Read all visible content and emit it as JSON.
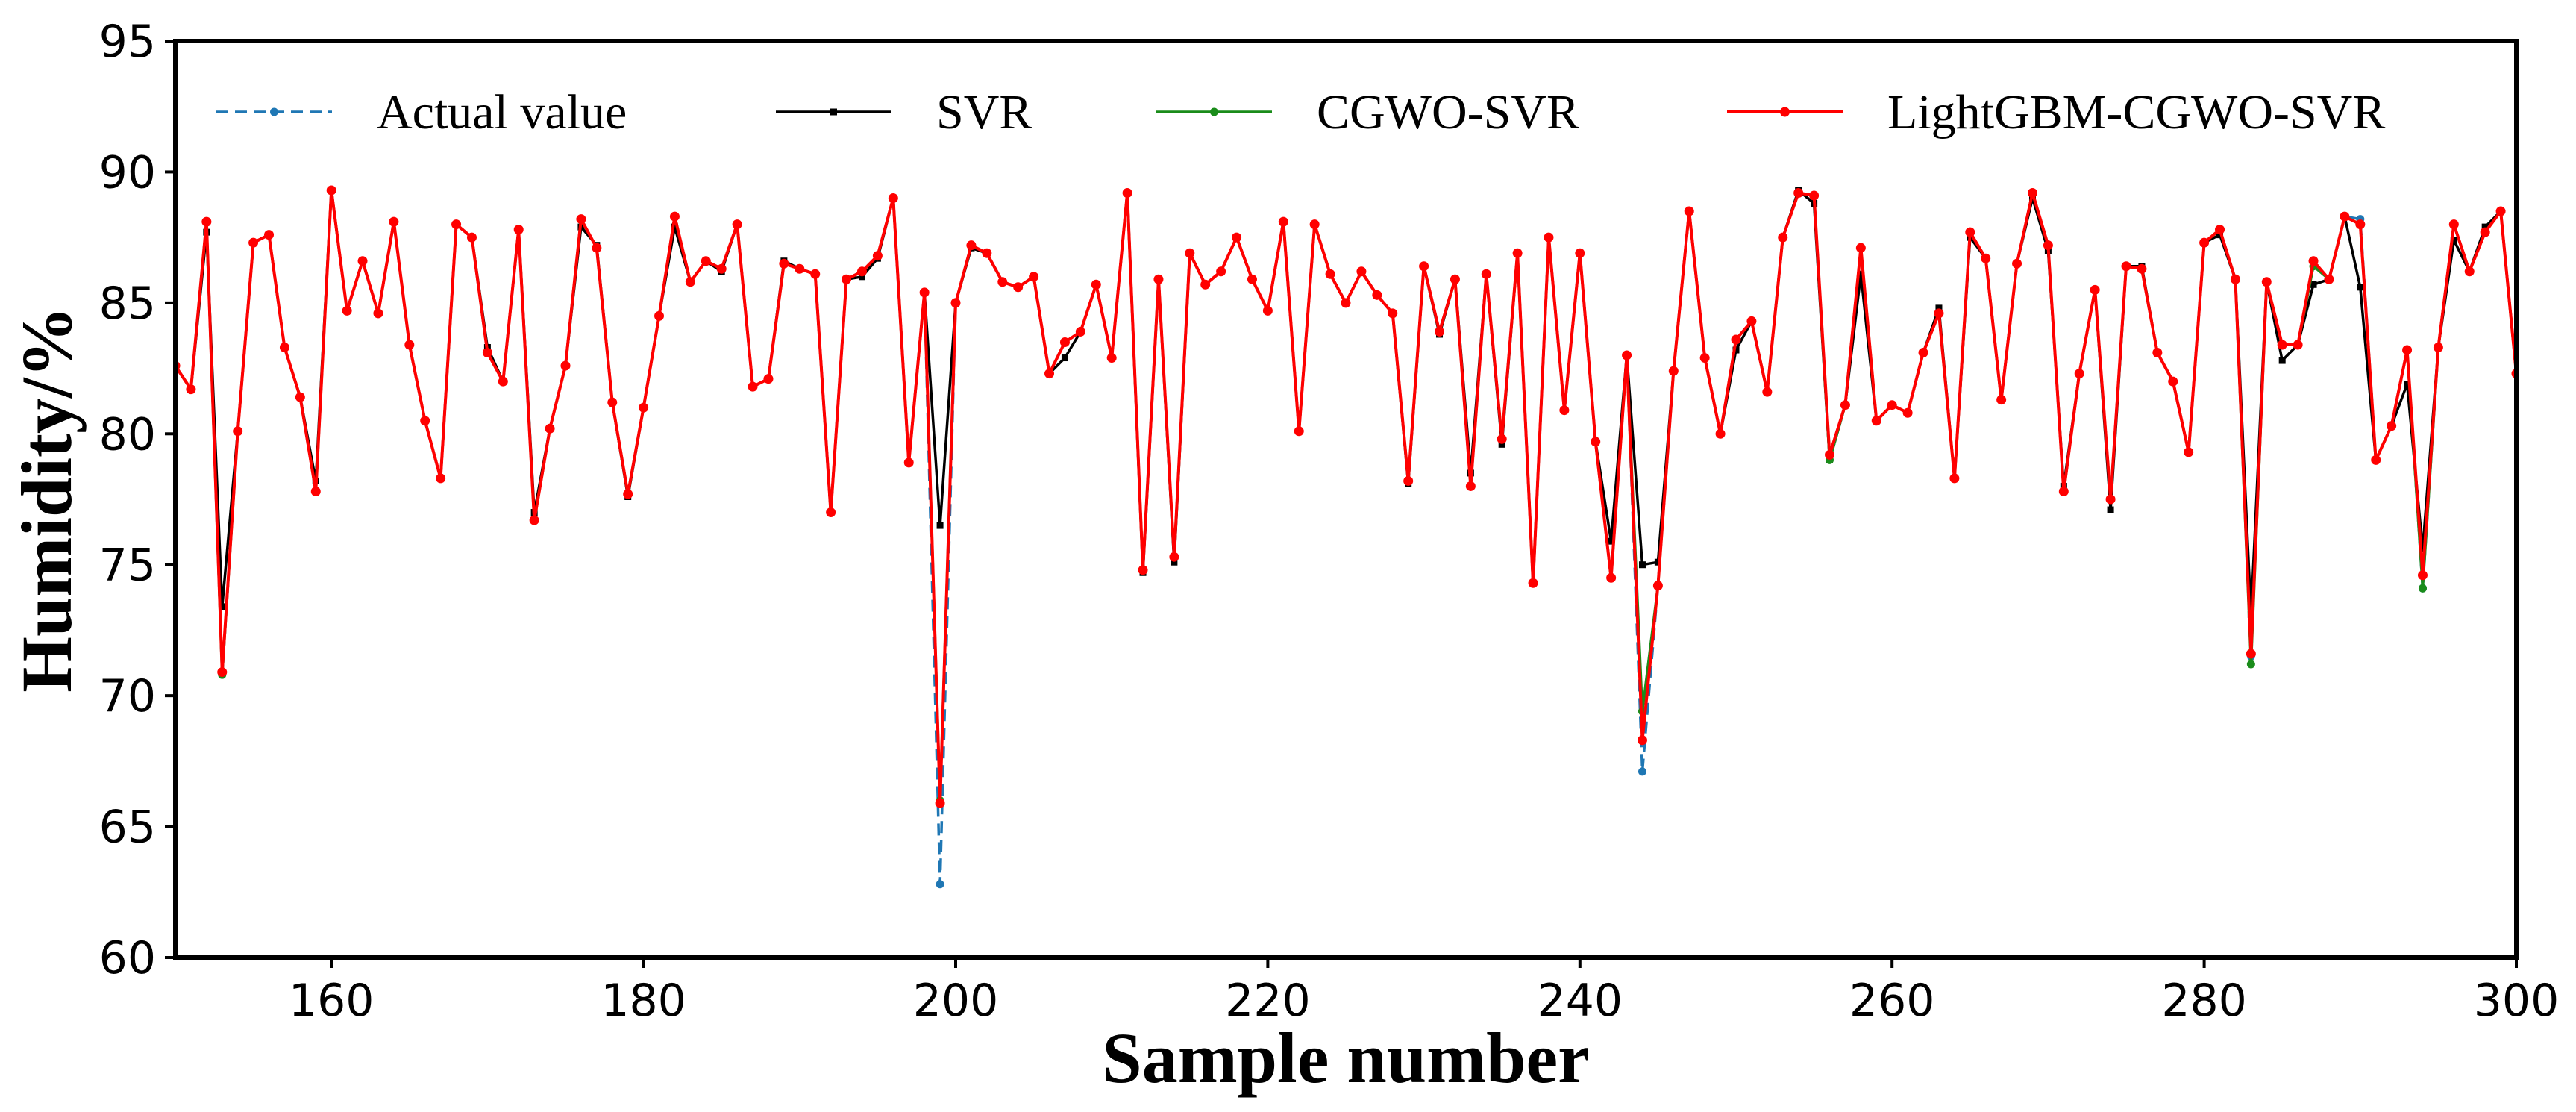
{
  "chart_data": {
    "type": "line",
    "title": "",
    "xlabel": "Sample number",
    "ylabel": "Humidity/%",
    "xlim": [
      150,
      300
    ],
    "ylim": [
      60,
      95
    ],
    "xticks": [
      160,
      180,
      200,
      220,
      240,
      260,
      280,
      300
    ],
    "yticks": [
      60,
      65,
      70,
      75,
      80,
      85,
      90,
      95
    ],
    "grid": false,
    "legend_position": "top",
    "x": [
      150,
      151,
      152,
      153,
      154,
      155,
      156,
      157,
      158,
      159,
      160,
      161,
      162,
      163,
      164,
      165,
      166,
      167,
      168,
      169,
      170,
      171,
      172,
      173,
      174,
      175,
      176,
      177,
      178,
      179,
      180,
      181,
      182,
      183,
      184,
      185,
      186,
      187,
      188,
      189,
      190,
      191,
      192,
      193,
      194,
      195,
      196,
      197,
      198,
      199,
      200,
      201,
      202,
      203,
      204,
      205,
      206,
      207,
      208,
      209,
      210,
      211,
      212,
      213,
      214,
      215,
      216,
      217,
      218,
      219,
      220,
      221,
      222,
      223,
      224,
      225,
      226,
      227,
      228,
      229,
      230,
      231,
      232,
      233,
      234,
      235,
      236,
      237,
      238,
      239,
      240,
      241,
      242,
      243,
      244,
      245,
      246,
      247,
      248,
      249,
      250,
      251,
      252,
      253,
      254,
      255,
      256,
      257,
      258,
      259,
      260,
      261,
      262,
      263,
      264,
      265,
      266,
      267,
      268,
      269,
      270,
      271,
      272,
      273,
      274,
      275,
      276,
      277,
      278,
      279,
      280,
      281,
      282,
      283,
      284,
      285,
      286,
      287,
      288,
      289,
      290,
      291,
      292,
      293,
      294,
      295,
      296,
      297,
      298,
      299,
      300
    ],
    "series": [
      {
        "name": "Actual value",
        "color": "#1f77b4",
        "style": "dashed",
        "values": [
          82.6,
          81.7,
          88.1,
          70.8,
          80.1,
          87.3,
          87.6,
          83.3,
          81.4,
          77.8,
          89.3,
          84.7,
          86.6,
          84.6,
          88.1,
          83.4,
          80.5,
          78.3,
          88.0,
          87.5,
          83.1,
          82.0,
          87.8,
          76.7,
          80.2,
          82.6,
          88.2,
          87.1,
          81.2,
          77.7,
          81.0,
          84.5,
          88.3,
          85.8,
          86.6,
          86.3,
          88.0,
          81.8,
          82.1,
          86.5,
          86.3,
          86.1,
          77.0,
          85.9,
          86.2,
          86.8,
          89.0,
          78.9,
          85.4,
          62.8,
          85.0,
          87.2,
          86.9,
          85.8,
          85.6,
          86.0,
          82.3,
          83.5,
          83.9,
          85.7,
          82.9,
          89.2,
          74.8,
          85.9,
          75.3,
          86.9,
          85.7,
          86.2,
          87.5,
          85.9,
          84.7,
          88.1,
          80.1,
          88.0,
          86.1,
          85.0,
          86.2,
          85.3,
          84.6,
          78.2,
          86.4,
          83.9,
          85.9,
          78.0,
          86.1,
          79.8,
          86.9,
          74.3,
          87.5,
          80.9,
          86.9,
          79.7,
          74.5,
          83.0,
          67.1,
          74.2,
          82.4,
          88.5,
          82.9,
          80.0,
          83.6,
          84.3,
          81.6,
          87.5,
          89.2,
          89.1,
          79.2,
          81.1,
          87.1,
          80.5,
          81.1,
          80.8,
          83.1,
          84.6,
          78.3,
          87.7,
          86.7,
          81.3,
          86.5,
          89.2,
          87.2,
          77.8,
          82.3,
          85.5,
          77.5,
          86.4,
          86.3,
          83.1,
          82.0,
          79.3,
          87.3,
          87.8,
          85.9,
          71.5,
          85.8,
          83.4,
          83.4,
          86.6,
          85.9,
          88.3,
          88.2,
          79.0,
          80.3,
          83.2,
          74.1,
          83.3,
          88.0,
          86.2,
          87.7,
          88.5,
          82.3
        ]
      },
      {
        "name": "SVR",
        "color": "#000000",
        "style": "solid",
        "values": [
          82.6,
          81.7,
          87.7,
          73.4,
          80.1,
          87.3,
          87.6,
          83.3,
          81.4,
          78.2,
          89.3,
          84.7,
          86.6,
          84.6,
          88.1,
          83.4,
          80.5,
          78.3,
          88.0,
          87.5,
          83.3,
          82.0,
          87.8,
          77.0,
          80.2,
          82.6,
          87.9,
          87.2,
          81.2,
          77.6,
          81.0,
          84.5,
          87.9,
          85.8,
          86.6,
          86.2,
          88.0,
          81.8,
          82.1,
          86.6,
          86.3,
          86.1,
          77.0,
          85.9,
          86.0,
          86.7,
          89.0,
          78.9,
          85.4,
          76.5,
          85.0,
          87.1,
          86.9,
          85.8,
          85.6,
          86.0,
          82.3,
          82.9,
          83.9,
          85.7,
          82.9,
          89.2,
          74.7,
          85.9,
          75.1,
          86.9,
          85.7,
          86.2,
          87.5,
          85.9,
          84.7,
          88.1,
          80.1,
          88.0,
          86.1,
          85.0,
          86.2,
          85.3,
          84.6,
          78.1,
          86.4,
          83.8,
          85.9,
          78.5,
          86.1,
          79.6,
          86.9,
          74.3,
          87.5,
          80.9,
          86.9,
          79.7,
          75.9,
          83.0,
          75.0,
          75.1,
          82.4,
          88.5,
          82.9,
          80.0,
          83.2,
          84.3,
          81.6,
          87.5,
          89.3,
          88.8,
          79.0,
          81.1,
          86.1,
          80.5,
          81.1,
          80.8,
          83.1,
          84.8,
          78.3,
          87.5,
          86.7,
          81.3,
          86.5,
          89.0,
          87.0,
          78.0,
          82.3,
          85.5,
          77.1,
          86.4,
          86.4,
          83.1,
          82.0,
          79.3,
          87.3,
          87.6,
          85.9,
          73.1,
          85.8,
          82.8,
          83.4,
          85.7,
          85.9,
          88.3,
          85.6,
          79.0,
          80.3,
          81.9,
          75.6,
          83.3,
          87.4,
          86.2,
          87.9,
          88.5,
          82.3
        ]
      },
      {
        "name": "CGWO-SVR",
        "color": "#1a8c1a",
        "style": "solid",
        "values": [
          82.6,
          81.7,
          88.1,
          70.8,
          80.1,
          87.3,
          87.6,
          83.3,
          81.4,
          77.8,
          89.3,
          84.7,
          86.6,
          84.6,
          88.1,
          83.4,
          80.5,
          78.3,
          88.0,
          87.5,
          83.1,
          82.0,
          87.8,
          76.7,
          80.2,
          82.6,
          88.2,
          87.1,
          81.2,
          77.7,
          81.0,
          84.5,
          88.3,
          85.8,
          86.6,
          86.3,
          88.0,
          81.8,
          82.1,
          86.5,
          86.3,
          86.1,
          77.0,
          85.9,
          86.2,
          86.8,
          89.0,
          78.9,
          85.4,
          66.0,
          85.0,
          87.2,
          86.9,
          85.8,
          85.6,
          86.0,
          82.3,
          83.5,
          83.9,
          85.7,
          82.9,
          89.2,
          74.8,
          85.9,
          75.3,
          86.9,
          85.7,
          86.2,
          87.5,
          85.9,
          84.7,
          88.1,
          80.1,
          88.0,
          86.1,
          85.0,
          86.2,
          85.3,
          84.6,
          78.2,
          86.4,
          83.9,
          85.9,
          78.0,
          86.1,
          79.8,
          86.9,
          74.3,
          87.5,
          80.9,
          86.9,
          79.7,
          74.5,
          83.0,
          69.4,
          74.2,
          82.4,
          88.5,
          82.9,
          80.0,
          83.6,
          84.3,
          81.6,
          87.5,
          89.2,
          89.1,
          79.0,
          81.1,
          87.1,
          80.5,
          81.1,
          80.8,
          83.1,
          84.6,
          78.3,
          87.7,
          86.7,
          81.3,
          86.5,
          89.2,
          87.2,
          77.8,
          82.3,
          85.5,
          77.5,
          86.4,
          86.3,
          83.1,
          82.0,
          79.3,
          87.3,
          87.8,
          85.9,
          71.2,
          85.8,
          83.4,
          83.4,
          86.4,
          85.9,
          88.3,
          88.0,
          79.0,
          80.3,
          83.2,
          74.1,
          83.3,
          88.0,
          86.2,
          87.7,
          88.5,
          82.3
        ]
      },
      {
        "name": "LightGBM-CGWO-SVR",
        "color": "#ff0000",
        "style": "solid",
        "values": [
          82.6,
          81.7,
          88.1,
          70.9,
          80.1,
          87.3,
          87.6,
          83.3,
          81.4,
          77.8,
          89.3,
          84.7,
          86.6,
          84.6,
          88.1,
          83.4,
          80.5,
          78.3,
          88.0,
          87.5,
          83.1,
          82.0,
          87.8,
          76.7,
          80.2,
          82.6,
          88.2,
          87.1,
          81.2,
          77.7,
          81.0,
          84.5,
          88.3,
          85.8,
          86.6,
          86.3,
          88.0,
          81.8,
          82.1,
          86.5,
          86.3,
          86.1,
          77.0,
          85.9,
          86.2,
          86.8,
          89.0,
          78.9,
          85.4,
          65.9,
          85.0,
          87.2,
          86.9,
          85.8,
          85.6,
          86.0,
          82.3,
          83.5,
          83.9,
          85.7,
          82.9,
          89.2,
          74.8,
          85.9,
          75.3,
          86.9,
          85.7,
          86.2,
          87.5,
          85.9,
          84.7,
          88.1,
          80.1,
          88.0,
          86.1,
          85.0,
          86.2,
          85.3,
          84.6,
          78.2,
          86.4,
          83.9,
          85.9,
          78.0,
          86.1,
          79.8,
          86.9,
          74.3,
          87.5,
          80.9,
          86.9,
          79.7,
          74.5,
          83.0,
          68.3,
          74.2,
          82.4,
          88.5,
          82.9,
          80.0,
          83.6,
          84.3,
          81.6,
          87.5,
          89.2,
          89.1,
          79.2,
          81.1,
          87.1,
          80.5,
          81.1,
          80.8,
          83.1,
          84.6,
          78.3,
          87.7,
          86.7,
          81.3,
          86.5,
          89.2,
          87.2,
          77.8,
          82.3,
          85.5,
          77.5,
          86.4,
          86.3,
          83.1,
          82.0,
          79.3,
          87.3,
          87.8,
          85.9,
          71.6,
          85.8,
          83.4,
          83.4,
          86.6,
          85.9,
          88.3,
          88.0,
          79.0,
          80.3,
          83.2,
          74.6,
          83.3,
          88.0,
          86.2,
          87.7,
          88.5,
          82.3
        ]
      }
    ]
  }
}
